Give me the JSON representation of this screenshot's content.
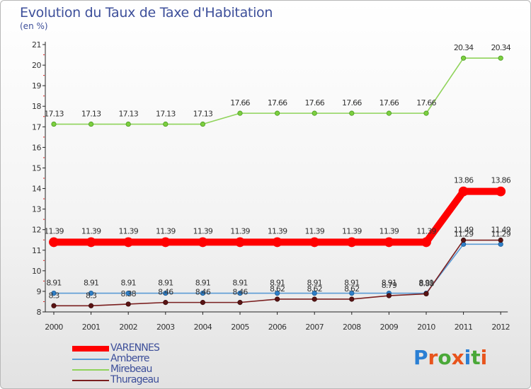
{
  "title": "Evolution du Taux de Taxe d'Habitation",
  "subtitle": "(en %)",
  "brand": {
    "text": "Proxiti",
    "letter_colors": [
      "#2a7fd4",
      "#e8541c",
      "#4aa838",
      "#e8541c",
      "#2a7fd4",
      "#4aa838",
      "#e8541c"
    ]
  },
  "chart_data": {
    "type": "line",
    "categories": [
      "2000",
      "2001",
      "2002",
      "2003",
      "2004",
      "2005",
      "2006",
      "2007",
      "2008",
      "2009",
      "2010",
      "2011",
      "2012"
    ],
    "ylim": [
      8,
      21
    ],
    "yticks": [
      "8",
      "9",
      "10",
      "11",
      "12",
      "13",
      "14",
      "15",
      "16",
      "17",
      "18",
      "19",
      "20",
      "21"
    ],
    "grid": false,
    "legend_position": "bottom-left",
    "series": [
      {
        "name": "VARENNES",
        "color": "#ff0000",
        "values": [
          11.39,
          11.39,
          11.39,
          11.39,
          11.39,
          11.39,
          11.39,
          11.39,
          11.39,
          11.39,
          11.39,
          13.86,
          13.86
        ],
        "labels": [
          "11.39",
          "11.39",
          "11.39",
          "11.39",
          "11.39",
          "11.39",
          "11.39",
          "11.39",
          "11.39",
          "11.39",
          "11.39",
          "13.86",
          "13.86"
        ]
      },
      {
        "name": "Amberre",
        "color": "#5b9bd5",
        "values": [
          8.91,
          8.91,
          8.91,
          8.91,
          8.91,
          8.91,
          8.91,
          8.91,
          8.91,
          8.91,
          8.91,
          11.29,
          11.29
        ],
        "labels": [
          "8.91",
          "8.91",
          "8.91",
          "8.91",
          "8.91",
          "8.91",
          "8.91",
          "8.91",
          "8.91",
          "8.91",
          "8.91",
          "11.29",
          "11.29"
        ]
      },
      {
        "name": "Mirebeau",
        "color": "#8fd35a",
        "values": [
          17.13,
          17.13,
          17.13,
          17.13,
          17.13,
          17.66,
          17.66,
          17.66,
          17.66,
          17.66,
          17.66,
          20.34,
          20.34
        ],
        "labels": [
          "17.13",
          "17.13",
          "17.13",
          "17.13",
          "17.13",
          "17.66",
          "17.66",
          "17.66",
          "17.66",
          "17.66",
          "17.66",
          "20.34",
          "20.34"
        ]
      },
      {
        "name": "Thurageau",
        "color": "#7a1f1f",
        "values": [
          8.3,
          8.3,
          8.38,
          8.46,
          8.46,
          8.46,
          8.62,
          8.62,
          8.62,
          8.79,
          8.88,
          11.49,
          11.49
        ],
        "labels": [
          "8.3",
          "8.3",
          "8.38",
          "8.46",
          "8.46",
          "8.46",
          "8.62",
          "8.62",
          "8.62",
          "8.79",
          "8.88",
          "11.49",
          "11.49"
        ]
      }
    ]
  }
}
